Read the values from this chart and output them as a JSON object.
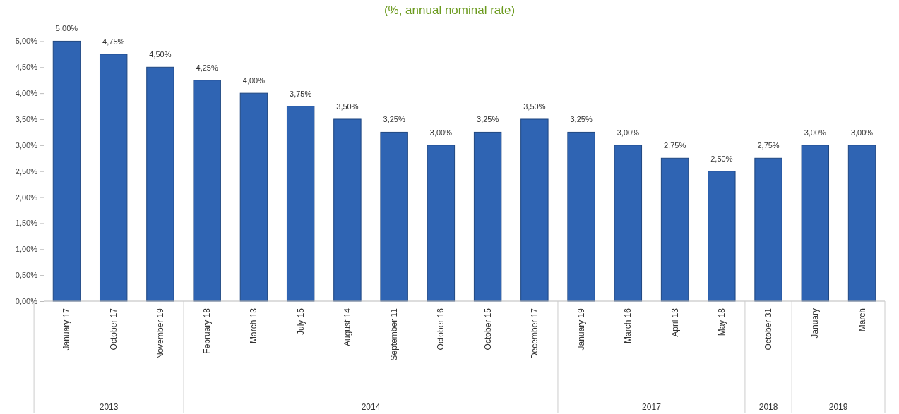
{
  "chart_data": {
    "type": "bar",
    "title": "(%, annual nominal rate)",
    "categories": [
      "January 17",
      "October 17",
      "November 19",
      "February 18",
      "March 13",
      "July 15",
      "August 14",
      "September 11",
      "October 16",
      "October 15",
      "December 17",
      "January 19",
      "March 16",
      "April 13",
      "May 18",
      "October 31",
      "January",
      "March"
    ],
    "values": [
      5,
      4.75,
      4.5,
      4.25,
      4,
      3.75,
      3.5,
      3.25,
      3,
      3.25,
      3.5,
      3.25,
      3,
      2.75,
      2.5,
      2.75,
      3,
      3
    ],
    "value_labels": [
      "5,00%",
      "4,75%",
      "4,50%",
      "4,25%",
      "4,00%",
      "3,75%",
      "3,50%",
      "3,25%",
      "3,00%",
      "3,25%",
      "3,50%",
      "3,25%",
      "3,00%",
      "2,75%",
      "2,50%",
      "2,75%",
      "3,00%",
      "3,00%"
    ],
    "color": "#2f64b3",
    "ylim": [
      0,
      5.25
    ],
    "yticks": [
      {
        "value": 0,
        "label": "0,00%"
      },
      {
        "value": 0.5,
        "label": "0,50%"
      },
      {
        "value": 1,
        "label": "1,00%"
      },
      {
        "value": 1.5,
        "label": "1,50%"
      },
      {
        "value": 2,
        "label": "2,00%"
      },
      {
        "value": 2.5,
        "label": "2,50%"
      },
      {
        "value": 3,
        "label": "3,00%"
      },
      {
        "value": 3.5,
        "label": "3,50%"
      },
      {
        "value": 4,
        "label": "4,00%"
      },
      {
        "value": 4.5,
        "label": "4,50%"
      },
      {
        "value": 5,
        "label": "5,00%"
      }
    ],
    "annotations": [
      "2013",
      "2014",
      "2017",
      "2018",
      "2019"
    ]
  }
}
